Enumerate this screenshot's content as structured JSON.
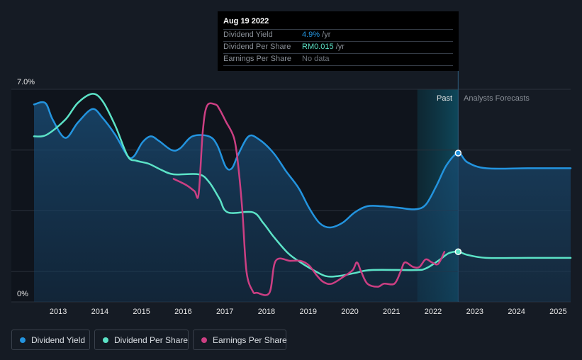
{
  "chart_data": {
    "type": "line",
    "ylabel_top": "7.0%",
    "ylabel_bottom": "0%",
    "ylim": [
      0,
      7.0
    ],
    "xlim": [
      2012.45,
      2025.33
    ],
    "x_ticks": [
      "2013",
      "2014",
      "2015",
      "2016",
      "2017",
      "2018",
      "2019",
      "2020",
      "2021",
      "2022",
      "2023",
      "2024",
      "2025"
    ],
    "past_label": "Past",
    "forecast_label": "Analysts Forecasts",
    "past_region_start": 2021.65,
    "forecast_start": 2022.63,
    "tooltip": {
      "date": "Aug 19 2022",
      "rows": [
        {
          "label": "Dividend Yield",
          "value": "4.9%",
          "unit": " /yr"
        },
        {
          "label": "Dividend Per Share",
          "value": "RM0.015",
          "unit": " /yr"
        },
        {
          "label": "Earnings Per Share",
          "value": "No data",
          "unit": ""
        }
      ]
    },
    "series": [
      {
        "name": "Dividend Yield",
        "color": "#2394df",
        "fill": true,
        "marker_x": 2022.63,
        "points": [
          [
            2012.45,
            6.5
          ],
          [
            2012.72,
            6.55
          ],
          [
            2012.9,
            6.0
          ],
          [
            2013.2,
            5.4
          ],
          [
            2013.5,
            5.9
          ],
          [
            2013.85,
            6.35
          ],
          [
            2014.1,
            6.05
          ],
          [
            2014.4,
            5.5
          ],
          [
            2014.7,
            4.8
          ],
          [
            2014.85,
            4.8
          ],
          [
            2015.05,
            5.25
          ],
          [
            2015.25,
            5.45
          ],
          [
            2015.45,
            5.3
          ],
          [
            2015.75,
            5.0
          ],
          [
            2015.95,
            5.05
          ],
          [
            2016.25,
            5.45
          ],
          [
            2016.65,
            5.45
          ],
          [
            2016.85,
            5.15
          ],
          [
            2017.05,
            4.45
          ],
          [
            2017.2,
            4.4
          ],
          [
            2017.35,
            4.85
          ],
          [
            2017.6,
            5.45
          ],
          [
            2017.85,
            5.35
          ],
          [
            2018.2,
            4.9
          ],
          [
            2018.5,
            4.3
          ],
          [
            2018.8,
            3.75
          ],
          [
            2019.05,
            3.1
          ],
          [
            2019.3,
            2.6
          ],
          [
            2019.55,
            2.45
          ],
          [
            2019.85,
            2.6
          ],
          [
            2020.15,
            2.95
          ],
          [
            2020.45,
            3.15
          ],
          [
            2020.8,
            3.15
          ],
          [
            2021.2,
            3.1
          ],
          [
            2021.6,
            3.05
          ],
          [
            2021.85,
            3.2
          ],
          [
            2022.1,
            3.8
          ],
          [
            2022.35,
            4.5
          ],
          [
            2022.63,
            4.9
          ],
          [
            2022.85,
            4.6
          ],
          [
            2023.3,
            4.4
          ],
          [
            2024.3,
            4.4
          ],
          [
            2025.33,
            4.4
          ]
        ]
      },
      {
        "name": "Dividend Per Share",
        "color": "#5ce3c7",
        "fill": false,
        "marker_x": 2022.63,
        "points": [
          [
            2012.45,
            5.45
          ],
          [
            2012.75,
            5.5
          ],
          [
            2013.2,
            6.0
          ],
          [
            2013.5,
            6.55
          ],
          [
            2013.85,
            6.85
          ],
          [
            2014.1,
            6.6
          ],
          [
            2014.4,
            5.8
          ],
          [
            2014.7,
            4.8
          ],
          [
            2014.9,
            4.65
          ],
          [
            2015.2,
            4.55
          ],
          [
            2015.5,
            4.35
          ],
          [
            2015.8,
            4.2
          ],
          [
            2016.4,
            4.2
          ],
          [
            2016.65,
            3.95
          ],
          [
            2016.9,
            3.4
          ],
          [
            2017.1,
            2.95
          ],
          [
            2017.7,
            2.95
          ],
          [
            2017.95,
            2.6
          ],
          [
            2018.2,
            2.15
          ],
          [
            2018.55,
            1.6
          ],
          [
            2018.85,
            1.3
          ],
          [
            2019.15,
            1.05
          ],
          [
            2019.45,
            0.85
          ],
          [
            2019.75,
            0.85
          ],
          [
            2020.15,
            0.95
          ],
          [
            2020.55,
            1.05
          ],
          [
            2021.6,
            1.05
          ],
          [
            2021.85,
            1.1
          ],
          [
            2022.15,
            1.35
          ],
          [
            2022.4,
            1.6
          ],
          [
            2022.63,
            1.65
          ],
          [
            2022.85,
            1.55
          ],
          [
            2023.3,
            1.45
          ],
          [
            2024.3,
            1.45
          ],
          [
            2025.33,
            1.45
          ]
        ]
      },
      {
        "name": "Earnings Per Share",
        "color": "#cc3f83",
        "fill": false,
        "marker_x": null,
        "points": [
          [
            2015.8,
            4.05
          ],
          [
            2016.1,
            3.85
          ],
          [
            2016.3,
            3.65
          ],
          [
            2016.4,
            3.55
          ],
          [
            2016.5,
            5.6
          ],
          [
            2016.6,
            6.45
          ],
          [
            2016.8,
            6.5
          ],
          [
            2016.9,
            6.35
          ],
          [
            2017.05,
            5.95
          ],
          [
            2017.25,
            5.4
          ],
          [
            2017.35,
            4.5
          ],
          [
            2017.45,
            3.0
          ],
          [
            2017.55,
            1.0
          ],
          [
            2017.7,
            0.35
          ],
          [
            2017.8,
            0.3
          ],
          [
            2018.1,
            0.3
          ],
          [
            2018.25,
            1.35
          ],
          [
            2018.6,
            1.35
          ],
          [
            2018.85,
            1.35
          ],
          [
            2019.05,
            1.2
          ],
          [
            2019.25,
            0.85
          ],
          [
            2019.4,
            0.65
          ],
          [
            2019.6,
            0.6
          ],
          [
            2019.9,
            0.85
          ],
          [
            2020.1,
            1.05
          ],
          [
            2020.2,
            1.3
          ],
          [
            2020.3,
            1.0
          ],
          [
            2020.45,
            0.6
          ],
          [
            2020.7,
            0.5
          ],
          [
            2020.85,
            0.6
          ],
          [
            2021.1,
            0.6
          ],
          [
            2021.25,
            1.0
          ],
          [
            2021.35,
            1.3
          ],
          [
            2021.55,
            1.15
          ],
          [
            2021.7,
            1.15
          ],
          [
            2021.85,
            1.4
          ],
          [
            2022.0,
            1.3
          ],
          [
            2022.15,
            1.25
          ],
          [
            2022.3,
            1.65
          ]
        ]
      }
    ],
    "legend": [
      {
        "label": "Dividend Yield",
        "color": "#2394df"
      },
      {
        "label": "Dividend Per Share",
        "color": "#5ce3c7"
      },
      {
        "label": "Earnings Per Share",
        "color": "#cc3f83"
      }
    ]
  }
}
